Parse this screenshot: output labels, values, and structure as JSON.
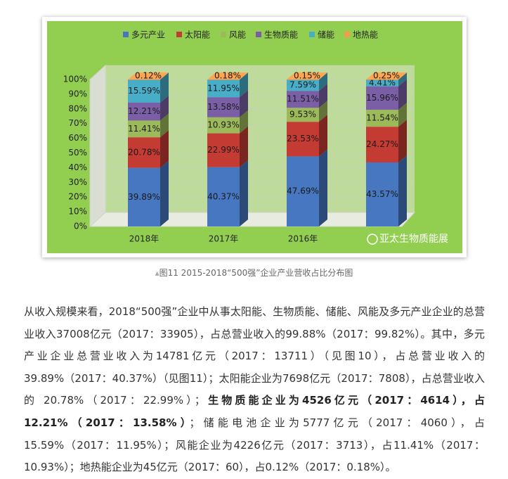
{
  "chart_data": {
    "type": "stacked-bar-3d",
    "categories": [
      "2018年",
      "2017年",
      "2016年",
      null
    ],
    "series": [
      {
        "name": "多元产业",
        "color": "#4677c0",
        "values": [
          39.89,
          40.37,
          47.69,
          43.57
        ],
        "value_labels": [
          "39.89%",
          "40.37%",
          "47.69%",
          "43.57%"
        ]
      },
      {
        "name": "太阳能",
        "color": "#c43b34",
        "values": [
          20.78,
          22.99,
          23.53,
          24.27
        ],
        "value_labels": [
          "20.78%",
          "22.99%",
          "23.53%",
          "24.27%"
        ]
      },
      {
        "name": "风能",
        "color": "#9cba5a",
        "values": [
          11.41,
          10.93,
          9.53,
          11.54
        ],
        "value_labels": [
          "11.41%",
          "10.93%",
          "9.53%",
          "11.54%"
        ]
      },
      {
        "name": "生物质能",
        "color": "#7b5fa6",
        "values": [
          12.21,
          13.58,
          11.51,
          15.96
        ],
        "value_labels": [
          "12.21%",
          "13.58%",
          "11.51%",
          "15.96%"
        ]
      },
      {
        "name": "储能",
        "color": "#48aec8",
        "values": [
          15.59,
          11.95,
          7.59,
          4.41
        ],
        "value_labels": [
          "15.59%",
          "11.95%",
          "7.59%",
          "4.41%"
        ]
      },
      {
        "name": "地热能",
        "color": "#f59a4a",
        "values": [
          0.12,
          0.18,
          0.15,
          0.25
        ],
        "value_labels": [
          "0.12%",
          "0.18%",
          "0.15%",
          "0.25%"
        ]
      }
    ],
    "ylim": [
      0,
      100
    ],
    "yticks": [
      {
        "value": 0,
        "label": "0%"
      },
      {
        "value": 10,
        "label": "10%"
      },
      {
        "value": 20,
        "label": "20%"
      },
      {
        "value": 30,
        "label": "30%"
      },
      {
        "value": 40,
        "label": "40%"
      },
      {
        "value": 50,
        "label": "50%"
      },
      {
        "value": 60,
        "label": "60%"
      },
      {
        "value": 70,
        "label": "70%"
      },
      {
        "value": 80,
        "label": "80%"
      },
      {
        "value": 90,
        "label": "90%"
      },
      {
        "value": 100,
        "label": "100%"
      }
    ],
    "grid": true,
    "legend": "top",
    "watermark": "亚太生物质能展"
  },
  "caption": "图11 2015-2018“500强”企业产业营收占比分布图",
  "paragraph": {
    "lead": "从收入规模来看，2018“500强”企业中从事太阳能、生物质能、储能、风能及多元产业企业的总营业收入37008亿元（2017：33905），占总营业收入的99.88%（2017：99.82%）。其中，多元产业企业总营业收入为14781亿元（2017：13711）（见图10），占总营业收入的39.89%（2017：40.37%）（见图11）；太阳能企业为7698亿元（2017：7808），占总营业收入的 20.78%（2017：22.99%）；",
    "bold": "生物质能企业为4526亿元（2017：4614），占12.21%（2017：13.58%）",
    "tail": "；储能电池企业为5777亿元（2017：4060），占15.59%（2017：11.95%）；风能企业为4226亿元（2017：3713），占11.41%（2017：10.93%）；地热能企业为45亿元（2017：60），占0.12%（2017：0.18%）。"
  }
}
